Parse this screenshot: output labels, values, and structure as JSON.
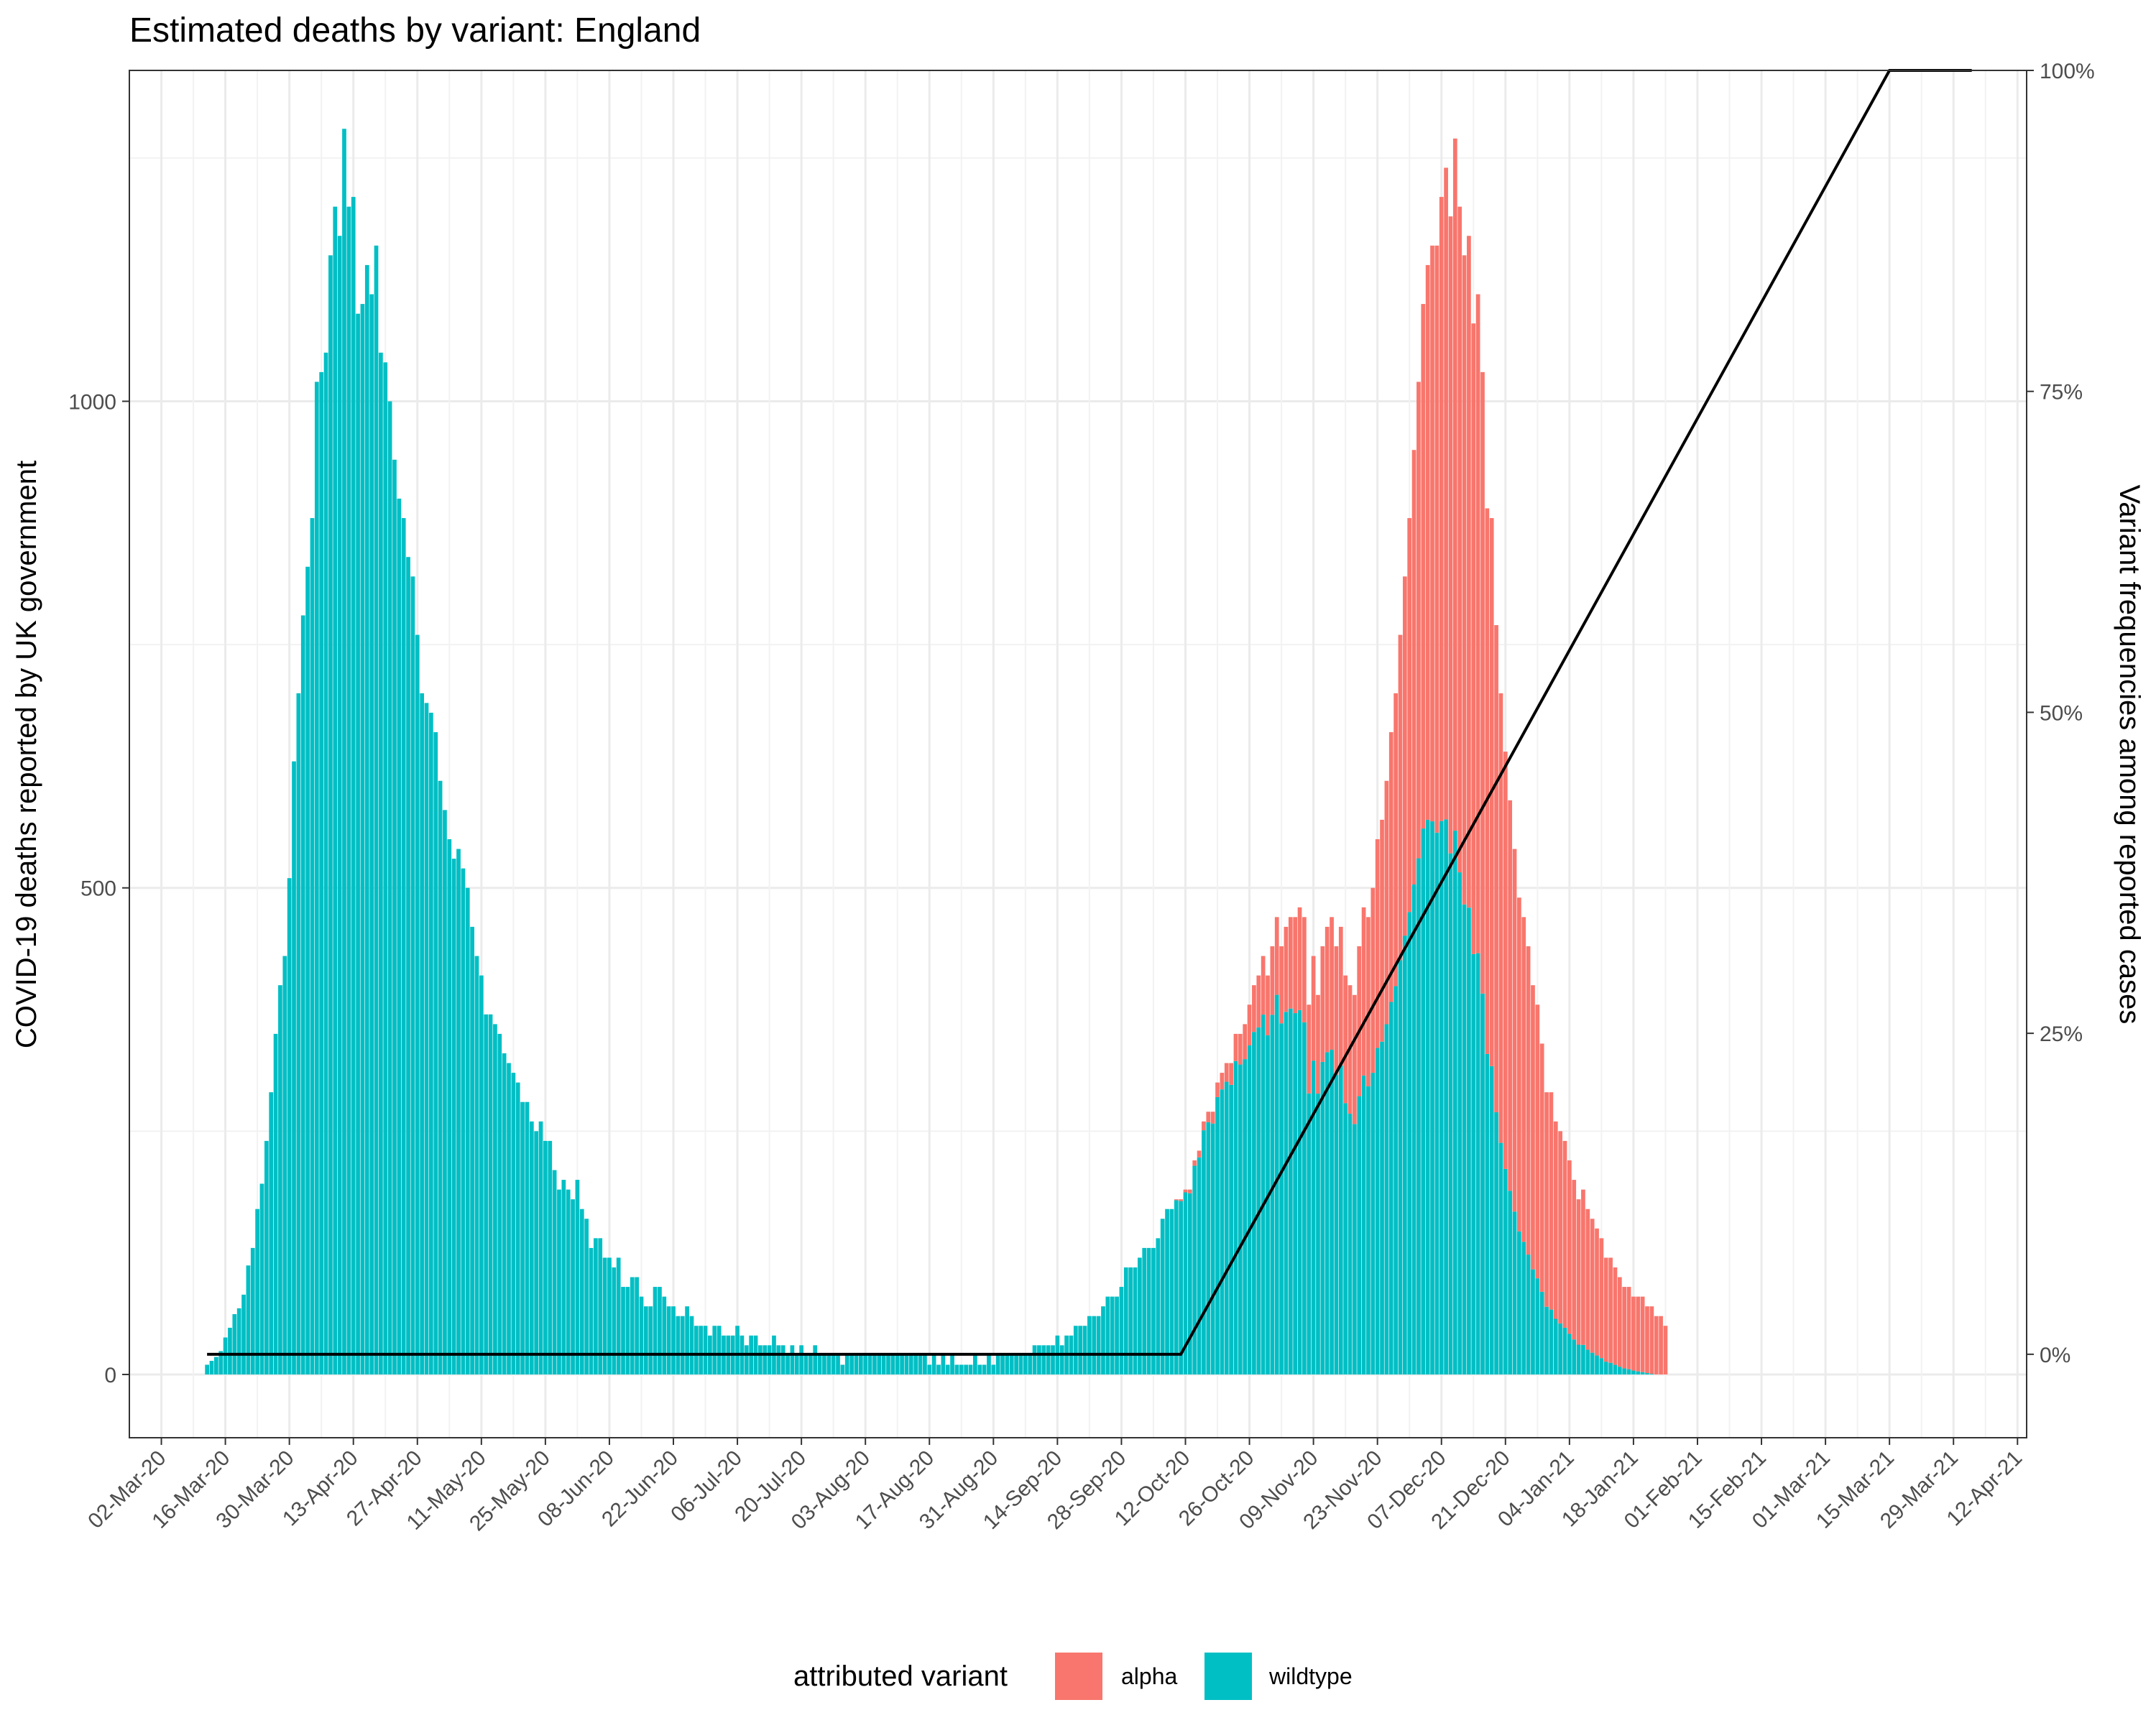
{
  "chart_data": {
    "type": "bar",
    "subtype": "stacked-bar-with-line",
    "title": "Estimated deaths by variant: England",
    "ylabel": "COVID-19 deaths reported by UK government",
    "y2label": "Variant frequencies among reported cases",
    "ylim": [
      -65,
      1340
    ],
    "y2lim": [
      -0.065,
      1.0
    ],
    "yticks": [
      0,
      500,
      1000
    ],
    "y2ticks": [
      "0%",
      "25%",
      "50%",
      "75%",
      "100%"
    ],
    "y2tick_values": [
      0,
      0.25,
      0.5,
      0.75,
      1.0
    ],
    "xlim": [
      "2020-02-24",
      "2021-04-14"
    ],
    "xticks": [
      "02-Mar-20",
      "16-Mar-20",
      "30-Mar-20",
      "13-Apr-20",
      "27-Apr-20",
      "11-May-20",
      "25-May-20",
      "08-Jun-20",
      "22-Jun-20",
      "06-Jul-20",
      "20-Jul-20",
      "03-Aug-20",
      "17-Aug-20",
      "31-Aug-20",
      "14-Sep-20",
      "28-Sep-20",
      "12-Oct-20",
      "26-Oct-20",
      "09-Nov-20",
      "23-Nov-20",
      "07-Dec-20",
      "21-Dec-20",
      "04-Jan-21",
      "18-Jan-21",
      "01-Feb-21",
      "15-Feb-21",
      "01-Mar-21",
      "15-Mar-21",
      "29-Mar-21",
      "12-Apr-21"
    ],
    "xtick_dates": [
      "2020-03-02",
      "2020-03-16",
      "2020-03-30",
      "2020-04-13",
      "2020-04-27",
      "2020-05-11",
      "2020-05-25",
      "2020-06-08",
      "2020-06-22",
      "2020-07-06",
      "2020-07-20",
      "2020-08-03",
      "2020-08-17",
      "2020-08-31",
      "2020-09-14",
      "2020-09-28",
      "2020-10-12",
      "2020-10-26",
      "2020-11-09",
      "2020-11-23",
      "2020-12-07",
      "2020-12-21",
      "2021-01-04",
      "2021-01-18",
      "2021-02-01",
      "2021-02-15",
      "2021-03-01",
      "2021-03-15",
      "2021-03-29",
      "2021-04-12"
    ],
    "grid": true,
    "legend": {
      "position": "bottom",
      "title": "attributed variant",
      "entries": [
        {
          "name": "alpha",
          "color": "#F8766D"
        },
        {
          "name": "wildtype",
          "color": "#00BFC4"
        }
      ]
    },
    "series": [
      {
        "name": "alpha",
        "color": "#F8766D",
        "stack": "deaths"
      },
      {
        "name": "wildtype",
        "color": "#00BFC4",
        "stack": "deaths"
      },
      {
        "name": "alpha frequency",
        "type": "line",
        "axis": "right",
        "color": "#000000",
        "points": [
          [
            "2020-03-12",
            0.0
          ],
          [
            "2020-10-11",
            0.0
          ],
          [
            "2021-03-15",
            1.0
          ],
          [
            "2021-04-02",
            1.0
          ]
        ]
      }
    ],
    "daily": {
      "start_date": "2020-03-12",
      "total": [
        10,
        14,
        18,
        24,
        38,
        48,
        62,
        68,
        82,
        112,
        130,
        170,
        196,
        240,
        290,
        350,
        400,
        430,
        510,
        630,
        700,
        780,
        830,
        880,
        1020,
        1030,
        1050,
        1150,
        1200,
        1170,
        1280,
        1200,
        1210,
        1090,
        1100,
        1140,
        1110,
        1160,
        1050,
        1040,
        1000,
        940,
        900,
        880,
        840,
        820,
        760,
        700,
        690,
        680,
        660,
        610,
        580,
        550,
        530,
        540,
        520,
        500,
        460,
        430,
        410,
        370,
        370,
        360,
        350,
        330,
        320,
        310,
        300,
        280,
        280,
        260,
        250,
        260,
        240,
        240,
        210,
        190,
        200,
        190,
        180,
        200,
        170,
        160,
        130,
        140,
        140,
        120,
        120,
        110,
        120,
        90,
        90,
        100,
        100,
        80,
        70,
        70,
        90,
        90,
        80,
        70,
        70,
        60,
        60,
        70,
        60,
        50,
        50,
        50,
        40,
        50,
        50,
        40,
        40,
        40,
        50,
        40,
        30,
        40,
        40,
        30,
        30,
        30,
        40,
        30,
        30,
        20,
        30,
        20,
        30,
        20,
        20,
        30,
        20,
        20,
        20,
        20,
        20,
        10,
        20,
        20,
        20,
        20,
        20,
        20,
        20,
        20,
        20,
        20,
        20,
        20,
        20,
        20,
        20,
        20,
        20,
        20,
        10,
        20,
        10,
        20,
        10,
        20,
        10,
        10,
        10,
        10,
        20,
        10,
        10,
        20,
        10,
        20,
        20,
        20,
        20,
        20,
        20,
        20,
        20,
        30,
        30,
        30,
        30,
        30,
        40,
        30,
        40,
        40,
        50,
        50,
        50,
        60,
        60,
        60,
        70,
        80,
        80,
        80,
        90,
        110,
        110,
        110,
        120,
        130,
        130,
        130,
        140,
        160,
        170,
        170,
        180,
        180,
        190,
        190,
        220,
        230,
        260,
        270,
        270,
        300,
        310,
        320,
        320,
        350,
        350,
        360,
        380,
        400,
        410,
        430,
        410,
        440,
        470,
        440,
        460,
        470,
        470,
        480,
        470,
        380,
        430,
        390,
        440,
        460,
        470,
        440,
        460,
        410,
        400,
        390,
        440,
        480,
        470,
        500,
        550,
        570,
        610,
        660,
        700,
        760,
        820,
        880,
        950,
        1020,
        1100,
        1140,
        1160,
        1160,
        1210,
        1240,
        1190,
        1270,
        1200,
        1150,
        1170,
        1080,
        1110,
        1030,
        890,
        880,
        770,
        700,
        640,
        590,
        540,
        490,
        470,
        440,
        400,
        380,
        340,
        290,
        290,
        260,
        250,
        240,
        220,
        200,
        180,
        190,
        170,
        160,
        150,
        140,
        120,
        120,
        110,
        100,
        90,
        90,
        80,
        80,
        80,
        70,
        70,
        60,
        60,
        50
      ],
      "alpha_share": [
        0,
        0,
        0,
        0,
        0,
        0,
        0,
        0,
        0,
        0,
        0,
        0,
        0,
        0,
        0,
        0,
        0,
        0,
        0,
        0,
        0,
        0,
        0,
        0,
        0,
        0,
        0,
        0,
        0,
        0,
        0,
        0,
        0,
        0,
        0,
        0,
        0,
        0,
        0,
        0,
        0,
        0,
        0,
        0,
        0,
        0,
        0,
        0,
        0,
        0,
        0,
        0,
        0,
        0,
        0,
        0,
        0,
        0,
        0,
        0,
        0,
        0,
        0,
        0,
        0,
        0,
        0,
        0,
        0,
        0,
        0,
        0,
        0,
        0,
        0,
        0,
        0,
        0,
        0,
        0,
        0,
        0,
        0,
        0,
        0,
        0,
        0,
        0,
        0,
        0,
        0,
        0,
        0,
        0,
        0,
        0,
        0,
        0,
        0,
        0,
        0,
        0,
        0,
        0,
        0,
        0,
        0,
        0,
        0,
        0,
        0,
        0,
        0,
        0,
        0,
        0,
        0,
        0,
        0,
        0,
        0,
        0,
        0,
        0,
        0,
        0,
        0,
        0,
        0,
        0,
        0,
        0,
        0,
        0,
        0,
        0,
        0,
        0,
        0,
        0,
        0,
        0,
        0,
        0,
        0,
        0,
        0,
        0,
        0,
        0,
        0,
        0,
        0,
        0,
        0,
        0,
        0,
        0,
        0,
        0,
        0,
        0,
        0,
        0,
        0,
        0,
        0,
        0,
        0,
        0,
        0,
        0,
        0,
        0,
        0,
        0,
        0,
        0,
        0,
        0,
        0,
        0,
        0,
        0,
        0,
        0,
        0,
        0,
        0,
        0,
        0,
        0,
        0,
        0,
        0,
        0,
        0,
        0,
        0,
        0,
        0,
        0,
        0,
        0,
        0,
        0,
        0,
        0,
        0,
        0,
        0,
        0,
        0.005,
        0.01,
        0.015,
        0.02,
        0.025,
        0.03,
        0.035,
        0.04,
        0.045,
        0.05,
        0.055,
        0.06,
        0.07,
        0.08,
        0.09,
        0.1,
        0.11,
        0.12,
        0.13,
        0.14,
        0.15,
        0.16,
        0.17,
        0.18,
        0.19,
        0.2,
        0.21,
        0.22,
        0.23,
        0.24,
        0.25,
        0.26,
        0.27,
        0.28,
        0.29,
        0.3,
        0.31,
        0.32,
        0.33,
        0.34,
        0.35,
        0.36,
        0.37,
        0.38,
        0.39,
        0.4,
        0.41,
        0.42,
        0.43,
        0.44,
        0.45,
        0.46,
        0.47,
        0.48,
        0.49,
        0.5,
        0.51,
        0.52,
        0.53,
        0.54,
        0.55,
        0.56,
        0.57,
        0.58,
        0.59,
        0.6,
        0.61,
        0.62,
        0.63,
        0.64,
        0.65,
        0.66,
        0.67,
        0.68,
        0.69,
        0.7,
        0.71,
        0.72,
        0.73,
        0.74,
        0.75,
        0.76,
        0.77,
        0.78,
        0.79,
        0.8,
        0.81,
        0.82,
        0.83,
        0.84,
        0.85,
        0.86,
        0.87,
        0.88,
        0.89,
        0.9,
        0.91,
        0.92,
        0.93,
        0.94,
        0.95,
        0.96,
        0.97,
        0.98,
        0.99,
        1,
        1,
        1,
        1
      ]
    }
  }
}
